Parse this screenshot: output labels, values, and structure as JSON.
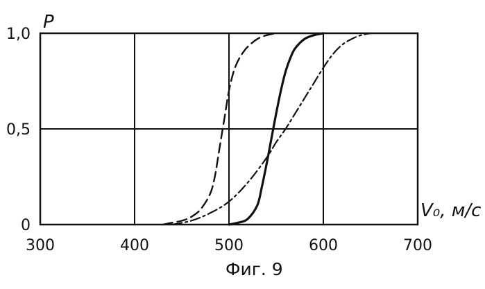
{
  "chart_data": {
    "type": "line",
    "title": "",
    "ylabel": "P",
    "xlabel": "V₀, м/с",
    "xlim": [
      300,
      700
    ],
    "ylim": [
      0,
      1.0
    ],
    "x_ticks": [
      "300",
      "400",
      "500",
      "600",
      "700"
    ],
    "y_ticks": [
      "0",
      "0,5",
      "1,0"
    ],
    "grid": true,
    "legend": "none",
    "caption": "Фиг. 9",
    "series": [
      {
        "line_style": "dashed",
        "x": [
          430,
          440,
          450,
          460,
          470,
          480,
          485,
          490,
          495,
          500,
          505,
          510,
          515,
          520,
          530,
          540,
          550
        ],
        "y": [
          0.0,
          0.01,
          0.02,
          0.04,
          0.08,
          0.16,
          0.25,
          0.4,
          0.55,
          0.7,
          0.8,
          0.86,
          0.9,
          0.93,
          0.97,
          0.99,
          1.0
        ]
      },
      {
        "line_style": "solid",
        "x": [
          500,
          510,
          520,
          530,
          535,
          540,
          545,
          550,
          555,
          560,
          565,
          570,
          580,
          590,
          600
        ],
        "y": [
          0.0,
          0.01,
          0.03,
          0.1,
          0.2,
          0.32,
          0.45,
          0.58,
          0.7,
          0.8,
          0.87,
          0.92,
          0.97,
          0.99,
          1.0
        ]
      },
      {
        "line_style": "dash-dot",
        "x": [
          440,
          460,
          480,
          500,
          520,
          540,
          550,
          560,
          570,
          580,
          590,
          600,
          610,
          620,
          630,
          640,
          650
        ],
        "y": [
          0.0,
          0.02,
          0.06,
          0.12,
          0.22,
          0.35,
          0.43,
          0.5,
          0.58,
          0.66,
          0.74,
          0.82,
          0.89,
          0.94,
          0.97,
          0.99,
          1.0
        ]
      }
    ]
  }
}
